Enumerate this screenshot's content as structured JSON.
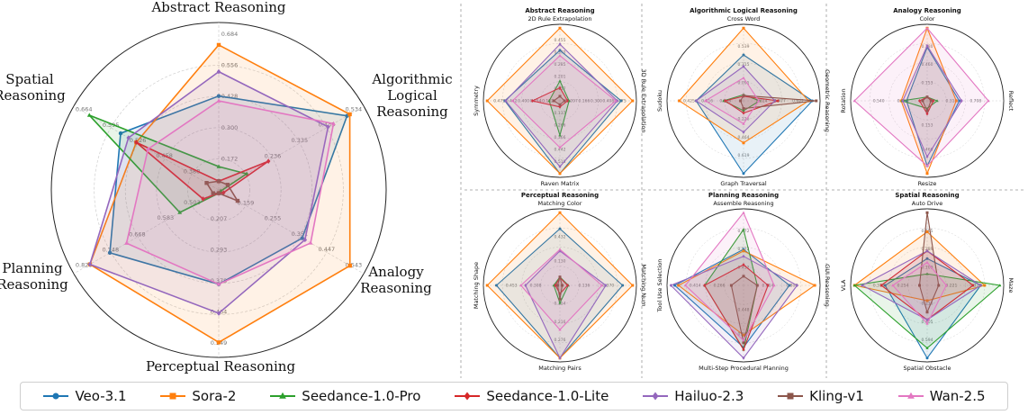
{
  "chart_data": [
    {
      "type": "radar",
      "panel": "overall",
      "title": "",
      "axes": [
        "Abstract Reasoning",
        "Algorithmic Logical Reasoning",
        "Analogy Reasoning",
        "Perceptual Reasoning",
        "Planning Reasoning",
        "Spatial Reasoning"
      ],
      "axis_label_lines": [
        [
          "Abstract Reasoning"
        ],
        [
          "Algorithmic",
          "Logical",
          "Reasoning"
        ],
        [
          "Analogy",
          "Reasoning"
        ],
        [
          "Perceptual Reasoning"
        ],
        [
          "Planning",
          "Reasoning"
        ],
        [
          "Spatial",
          "Reasoning"
        ]
      ],
      "ticks": [
        [
          "0.172",
          "0.300",
          "0.428",
          "0.556",
          "0.684"
        ],
        [
          "0.236",
          "0.335",
          "0.435",
          "0.534"
        ],
        [
          "0.159",
          "0.255",
          "0.351",
          "0.447",
          "0.543"
        ],
        [
          "0.207",
          "0.293",
          "0.378",
          "0.464",
          "0.549"
        ],
        [
          "0.503",
          "0.583",
          "0.668",
          "0.748",
          "0.828"
        ],
        [
          "0.388",
          "0.458",
          "0.526",
          "0.595",
          "0.664"
        ]
      ],
      "ranges": [
        [
          0.044,
          0.684
        ],
        [
          0.037,
          0.534
        ],
        [
          0.063,
          0.543
        ],
        [
          0.121,
          0.549
        ],
        [
          0.423,
          0.828
        ],
        [
          0.319,
          0.664
        ]
      ],
      "series": [
        {
          "name": "Veo-3.1",
          "values": [
            0.43,
            0.51,
            0.36,
            0.38,
            0.75,
            0.57
          ]
        },
        {
          "name": "Sora-2",
          "values": [
            0.64,
            0.52,
            0.53,
            0.54,
            0.81,
            0.53
          ]
        },
        {
          "name": "Seedance-1.0-Pro",
          "values": [
            0.14,
            0.14,
            0.07,
            0.13,
            0.54,
            0.65
          ]
        },
        {
          "name": "Seedance-1.0-Lite",
          "values": [
            0.08,
            0.22,
            0.08,
            0.13,
            0.47,
            0.53
          ]
        },
        {
          "name": "Hailuo-2.3",
          "values": [
            0.53,
            0.44,
            0.37,
            0.46,
            0.81,
            0.55
          ]
        },
        {
          "name": "Kling-v1",
          "values": [
            0.08,
            0.07,
            0.13,
            0.13,
            0.44,
            0.35
          ]
        },
        {
          "name": "Wan-2.5",
          "values": [
            0.41,
            0.46,
            0.39,
            0.38,
            0.7,
            0.5
          ]
        }
      ]
    },
    {
      "type": "radar",
      "panel": "abstract",
      "title": "Abstract Reasoning",
      "axes": [
        "2D Rule Extrapolation",
        "3D Rule Extrapolation",
        "Raven Matrix",
        "Symmetry"
      ],
      "ticks": [
        [
          "0.117",
          "0.201",
          "0.285",
          "0.370",
          "0.455"
        ],
        [
          "0.097",
          "0.166",
          "0.300",
          "0.408",
          "0.475"
        ],
        [
          "0.137",
          "0.266",
          "0.366",
          "0.442",
          "0.518"
        ],
        [
          "0.122",
          "0.254",
          "0.400",
          "0.442",
          "0.475"
        ]
      ],
      "series": [
        {
          "name": "Veo-3.1",
          "values": [
            0.66,
            0.8,
            0.95,
            0.72
          ]
        },
        {
          "name": "Sora-2",
          "values": [
            0.95,
            0.95,
            0.95,
            0.95
          ]
        },
        {
          "name": "Seedance-1.0-Pro",
          "values": [
            0.26,
            0.12,
            0.45,
            0.14
          ]
        },
        {
          "name": "Seedance-1.0-Lite",
          "values": [
            0.17,
            0.1,
            0.08,
            0.36
          ]
        },
        {
          "name": "Hailuo-2.3",
          "values": [
            0.74,
            0.75,
            0.86,
            0.71
          ]
        },
        {
          "name": "Kling-v1",
          "values": [
            0.06,
            0.06,
            0.05,
            0.08
          ]
        },
        {
          "name": "Wan-2.5",
          "values": [
            0.59,
            0.73,
            0.61,
            0.62
          ]
        }
      ]
    },
    {
      "type": "radar",
      "panel": "algorithmic",
      "title": "Algorithmic Logical Reasoning",
      "axes": [
        "Cross Word",
        "Geometric Reasoning",
        "Graph Traversal",
        "Sudoku"
      ],
      "ticks": [
        [
          "0.091",
          "0.315",
          "0.539"
        ],
        [
          "0.314",
          "0.477",
          "0.622"
        ],
        [
          "0.226",
          "0.464",
          "0.619"
        ],
        [
          "0.208",
          "0.316",
          "0.425"
        ]
      ],
      "series": [
        {
          "name": "Veo-3.1",
          "values": [
            0.6,
            0.9,
            0.95,
            0.62
          ]
        },
        {
          "name": "Sora-2",
          "values": [
            0.95,
            0.85,
            0.55,
            0.84
          ]
        },
        {
          "name": "Seedance-1.0-Pro",
          "values": [
            0.08,
            0.21,
            0.13,
            0.26
          ]
        },
        {
          "name": "Seedance-1.0-Lite",
          "values": [
            0.06,
            0.45,
            0.16,
            0.24
          ]
        },
        {
          "name": "Hailuo-2.3",
          "values": [
            0.45,
            0.41,
            0.41,
            0.62
          ]
        },
        {
          "name": "Kling-v1",
          "values": [
            0.07,
            0.95,
            0.1,
            0.04
          ]
        },
        {
          "name": "Wan-2.5",
          "values": [
            0.3,
            0.2,
            0.3,
            0.5
          ]
        }
      ]
    },
    {
      "type": "radar",
      "panel": "analogy",
      "title": "Analogy Reasoning",
      "axes": [
        "Color",
        "Reflect",
        "Resize",
        "Rotation"
      ],
      "ticks": [
        [
          "0.153",
          "0.460",
          "0.780"
        ],
        [
          "0.314",
          "0.708"
        ],
        [
          "0.153",
          "0.460"
        ],
        [
          "0.258",
          "0.540"
        ]
      ],
      "series": [
        {
          "name": "Veo-3.1",
          "values": [
            0.7,
            0.42,
            0.85,
            0.27
          ]
        },
        {
          "name": "Sora-2",
          "values": [
            0.95,
            0.38,
            0.95,
            0.34
          ]
        },
        {
          "name": "Seedance-1.0-Pro",
          "values": [
            0.05,
            0.13,
            0.1,
            0.33
          ]
        },
        {
          "name": "Seedance-1.0-Lite",
          "values": [
            0.05,
            0.08,
            0.17,
            0.1
          ]
        },
        {
          "name": "Hailuo-2.3",
          "values": [
            0.72,
            0.45,
            0.73,
            0.32
          ]
        },
        {
          "name": "Kling-v1",
          "values": [
            0.05,
            0.05,
            0.13,
            0.06
          ]
        },
        {
          "name": "Wan-2.5",
          "values": [
            0.95,
            0.8,
            0.85,
            0.95
          ]
        }
      ]
    },
    {
      "type": "radar",
      "panel": "perceptual",
      "title": "Perceptual Reasoning",
      "axes": [
        "Matching Color",
        "Matching Num",
        "Matching Pairs",
        "Matching Shape"
      ],
      "ticks": [
        [
          "0.130",
          "0.432"
        ],
        [
          "0.136",
          "0.370"
        ],
        [
          "0.154",
          "0.216",
          "0.276"
        ],
        [
          "0.308",
          "0.453"
        ]
      ],
      "series": [
        {
          "name": "Veo-3.1",
          "values": [
            0.74,
            0.82,
            0.95,
            0.83
          ]
        },
        {
          "name": "Sora-2",
          "values": [
            0.95,
            0.95,
            0.95,
            0.95
          ]
        },
        {
          "name": "Seedance-1.0-Pro",
          "values": [
            0.11,
            0.11,
            0.23,
            0.08
          ]
        },
        {
          "name": "Seedance-1.0-Lite",
          "values": [
            0.1,
            0.1,
            0.11,
            0.06
          ]
        },
        {
          "name": "Hailuo-2.3",
          "values": [
            0.45,
            0.6,
            0.95,
            0.45
          ]
        },
        {
          "name": "Kling-v1",
          "values": [
            0.11,
            0.03,
            0.18,
            0.03
          ]
        },
        {
          "name": "Wan-2.5",
          "values": [
            0.47,
            0.55,
            0.58,
            0.51
          ]
        }
      ]
    },
    {
      "type": "radar",
      "panel": "planning",
      "title": "Planning Reasoning",
      "axes": [
        "Assemble Reasoning",
        "GUI Reasoning",
        "Multi-Step Procedural Planning",
        "Tool Use Selection"
      ],
      "ticks": [
        [
          "0.452",
          "0.572",
          "0.672"
        ],
        [
          "0.614",
          "0.800"
        ],
        [
          "0.448",
          "0.500"
        ],
        [
          "0.266",
          "0.414"
        ]
      ],
      "series": [
        {
          "name": "Veo-3.1",
          "values": [
            0.47,
            0.6,
            0.81,
            0.9
          ]
        },
        {
          "name": "Sora-2",
          "values": [
            0.45,
            0.93,
            0.65,
            0.85
          ]
        },
        {
          "name": "Seedance-1.0-Pro",
          "values": [
            0.73,
            0.18,
            0.84,
            0.51
          ]
        },
        {
          "name": "Seedance-1.0-Lite",
          "values": [
            0.27,
            0.32,
            0.84,
            0.51
          ]
        },
        {
          "name": "Hailuo-2.3",
          "values": [
            0.38,
            0.7,
            0.95,
            0.95
          ]
        },
        {
          "name": "Kling-v1",
          "values": [
            0.12,
            0.18,
            0.75,
            0.16
          ]
        },
        {
          "name": "Wan-2.5",
          "values": [
            0.95,
            0.4,
            0.72,
            0.76
          ]
        }
      ]
    },
    {
      "type": "radar",
      "panel": "spatial",
      "title": "Spatial Reasoning",
      "axes": [
        "Auto Drive",
        "Maze",
        "Spatial Obstacle",
        "VLA"
      ],
      "ticks": [
        [
          "0.109",
          "0.289",
          "0.565"
        ],
        [
          "0.221",
          "0.372"
        ],
        [
          "0.216",
          "0.405",
          "0.594"
        ],
        [
          "0.254",
          "0.377"
        ]
      ],
      "series": [
        {
          "name": "Veo-3.1",
          "values": [
            0.35,
            0.7,
            0.95,
            0.55
          ]
        },
        {
          "name": "Sora-2",
          "values": [
            0.7,
            0.75,
            0.2,
            0.95
          ]
        },
        {
          "name": "Seedance-1.0-Pro",
          "values": [
            0.15,
            0.95,
            0.82,
            0.95
          ]
        },
        {
          "name": "Seedance-1.0-Lite",
          "values": [
            0.45,
            0.6,
            0.45,
            0.6
          ]
        },
        {
          "name": "Hailuo-2.3",
          "values": [
            0.45,
            0.7,
            0.45,
            0.85
          ]
        },
        {
          "name": "Kling-v1",
          "values": [
            0.95,
            0.15,
            0.35,
            0.1
          ]
        },
        {
          "name": "Wan-2.5",
          "values": [
            0.3,
            0.25,
            0.5,
            0.45
          ]
        }
      ]
    }
  ],
  "legend": [
    {
      "name": "Veo-3.1",
      "color": "#1f77b4",
      "marker": "circle"
    },
    {
      "name": "Sora-2",
      "color": "#ff7f0e",
      "marker": "square"
    },
    {
      "name": "Seedance-1.0-Pro",
      "color": "#2ca02c",
      "marker": "triangle"
    },
    {
      "name": "Seedance-1.0-Lite",
      "color": "#d62728",
      "marker": "diamond"
    },
    {
      "name": "Hailuo-2.3",
      "color": "#9467bd",
      "marker": "diamond"
    },
    {
      "name": "Kling-v1",
      "color": "#8c564b",
      "marker": "square"
    },
    {
      "name": "Wan-2.5",
      "color": "#e377c2",
      "marker": "triangle"
    }
  ]
}
